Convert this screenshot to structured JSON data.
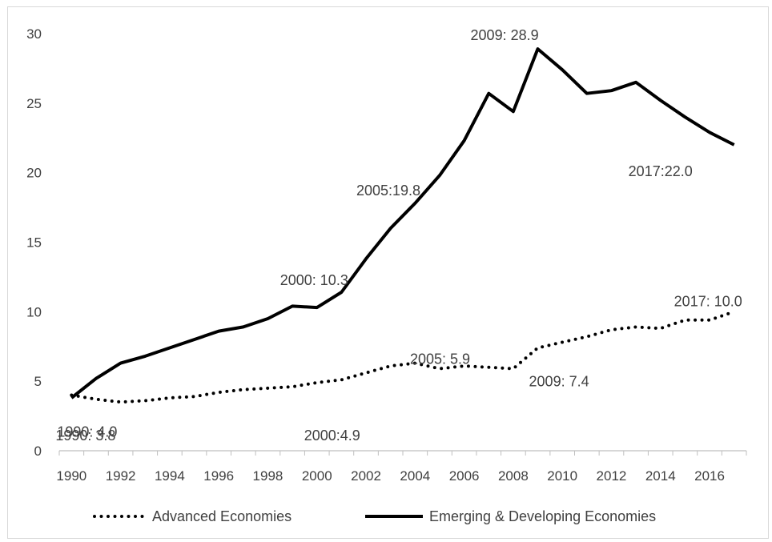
{
  "chart_data": {
    "type": "line",
    "title": "",
    "xlabel": "",
    "ylabel": "",
    "xlim": [
      1990,
      2017
    ],
    "ylim": [
      0,
      30
    ],
    "yticks": [
      0,
      5,
      10,
      15,
      20,
      25,
      30
    ],
    "xticks": [
      1990,
      1992,
      1994,
      1996,
      1998,
      2000,
      2002,
      2004,
      2006,
      2008,
      2010,
      2012,
      2014,
      2016
    ],
    "grid": false,
    "legend_position": "bottom",
    "x": [
      1990,
      1991,
      1992,
      1993,
      1994,
      1995,
      1996,
      1997,
      1998,
      1999,
      2000,
      2001,
      2002,
      2003,
      2004,
      2005,
      2006,
      2007,
      2008,
      2009,
      2010,
      2011,
      2012,
      2013,
      2014,
      2015,
      2016,
      2017
    ],
    "series": [
      {
        "name": "Advanced Economies",
        "style": "dotted",
        "color": "#000000",
        "values": [
          4.0,
          3.7,
          3.5,
          3.6,
          3.8,
          3.9,
          4.2,
          4.4,
          4.5,
          4.6,
          4.9,
          5.1,
          5.6,
          6.1,
          6.3,
          5.9,
          6.1,
          6.0,
          5.9,
          7.4,
          7.8,
          8.2,
          8.7,
          8.9,
          8.8,
          9.4,
          9.4,
          10.0
        ]
      },
      {
        "name": "Emerging & Developing Economies",
        "style": "solid",
        "color": "#000000",
        "values": [
          3.8,
          5.2,
          6.3,
          6.8,
          7.4,
          8.0,
          8.6,
          8.9,
          9.5,
          10.4,
          10.3,
          11.4,
          13.8,
          16.0,
          17.8,
          19.8,
          22.3,
          25.7,
          24.4,
          28.9,
          27.4,
          25.7,
          25.9,
          26.5,
          25.2,
          24.0,
          22.9,
          22.0
        ]
      }
    ],
    "annotations": [
      {
        "text": "1990: 3.8",
        "series": 1,
        "x": 1990
      },
      {
        "text": "2000: 10.3",
        "series": 1,
        "x": 2000
      },
      {
        "text": "2005:19.8",
        "series": 1,
        "x": 2005
      },
      {
        "text": "2009: 28.9",
        "series": 1,
        "x": 2009
      },
      {
        "text": "2017:22.0",
        "series": 1,
        "x": 2017
      },
      {
        "text": "1990: 4.0",
        "series": 0,
        "x": 1990
      },
      {
        "text": "2000:4.9",
        "series": 0,
        "x": 2000
      },
      {
        "text": "2005: 5.9",
        "series": 0,
        "x": 2005
      },
      {
        "text": "2009: 7.4",
        "series": 0,
        "x": 2009
      },
      {
        "text": "2017: 10.0",
        "series": 0,
        "x": 2017
      }
    ]
  }
}
